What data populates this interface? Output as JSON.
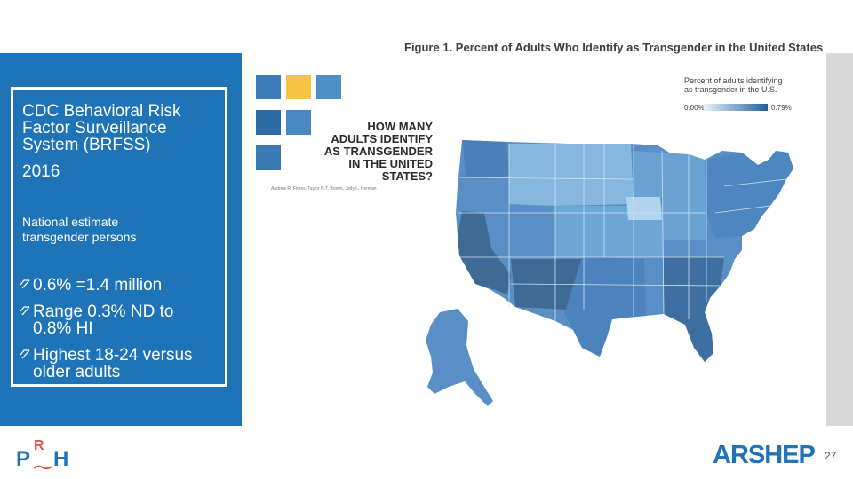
{
  "left_panel": {
    "heading": [
      "CDC Behavioral Risk",
      "Factor Surveillance",
      "System (BRFSS)"
    ],
    "year": "2016",
    "subheading": [
      "National estimate",
      "transgender persons"
    ],
    "bullets": [
      {
        "lines": [
          "0.6% =1.4 million"
        ]
      },
      {
        "lines": [
          "Range 0.3% ND to",
          "0.8% HI"
        ]
      },
      {
        "lines": [
          "Highest 18-24 versus",
          "older adults"
        ]
      }
    ]
  },
  "figure": {
    "title": "Figure 1. Percent of Adults Who Identify as Transgender in the United States",
    "legend_title": [
      "Percent of adults identifying",
      "as transgender in the U.S."
    ],
    "legend_min": "0.00%",
    "legend_max": "0.79%"
  },
  "report": {
    "title": [
      "HOW MANY",
      "ADULTS IDENTIFY",
      "AS TRANSGENDER",
      "IN THE UNITED STATES?"
    ],
    "authors": "Andrew R. Flores, Taylor N.T. Brown, Jody L. Herman"
  },
  "logos": {
    "prh_letters": [
      "P",
      "R",
      "H"
    ],
    "arshep": "ARSHEP"
  },
  "page_number": "27",
  "colors": {
    "panel_blue": "#1f73b7",
    "map_light": "#9ec8e6",
    "map_dark": "#3f6a96",
    "accent_yellow": "#f5c445"
  }
}
